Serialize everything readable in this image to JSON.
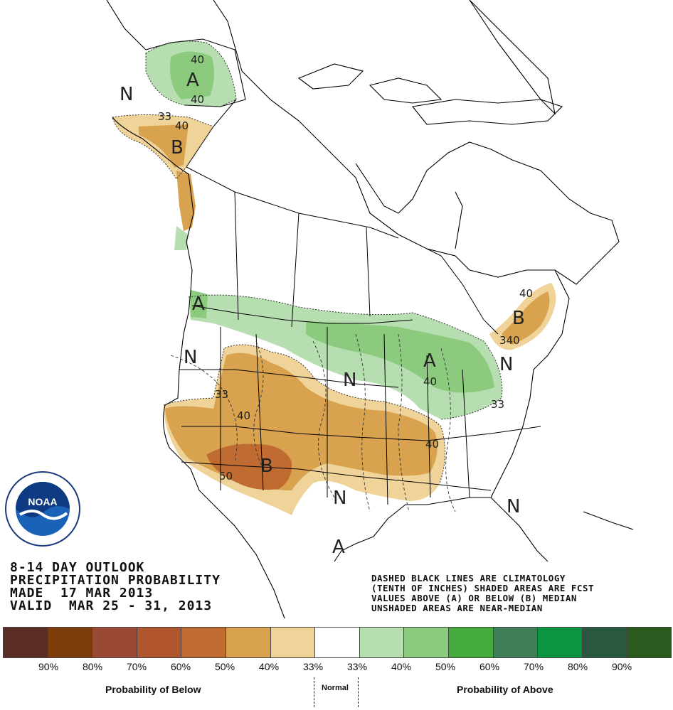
{
  "header": {
    "line1": "8-14 DAY OUTLOOK",
    "line2": "PRECIPITATION PROBABILITY",
    "line3": "MADE  17 MAR 2013",
    "line4": "VALID  MAR 25 - 31, 2013"
  },
  "notes": {
    "line1": "DASHED BLACK LINES ARE CLIMATOLOGY",
    "line2": "(TENTH OF INCHES) SHADED AREAS ARE FCST",
    "line3": "VALUES ABOVE (A) OR BELOW (B) MEDIAN",
    "line4": "UNSHADED AREAS ARE NEAR-MEDIAN"
  },
  "logo": {
    "text": "NOAA",
    "icon": "noaa-logo"
  },
  "map_labels": {
    "n_alaska": "N",
    "a_alaska": "A",
    "b_alaska": "B",
    "a_pnw": "A",
    "n_nv": "N",
    "n_plains": "N",
    "a_greatlakes": "A",
    "b_ne": "B",
    "n_east": "N",
    "b_sw": "B",
    "n_tx": "N",
    "a_gulf": "A",
    "n_se": "N"
  },
  "contours": {
    "c40a": "40",
    "c40b": "40",
    "c33a": "33",
    "c40c": "40",
    "c33b": "33",
    "c40d": "40",
    "c50": "50",
    "c40e": "40",
    "c33c": "33",
    "c40f": "40",
    "c40g": "40",
    "c340": "340"
  },
  "legend": {
    "colors": [
      "#5a2e26",
      "#7d3e0c",
      "#9a4a34",
      "#b0552e",
      "#c06b32",
      "#d8a24e",
      "#f0d398",
      "#ffffff",
      "#b6deb0",
      "#8ccb7e",
      "#44ab3c",
      "#3f7e56",
      "#0b9442",
      "#2a5740",
      "#2a5a1e"
    ],
    "percent_labels": [
      "90%",
      "80%",
      "70%",
      "60%",
      "50%",
      "40%",
      "33%",
      "33%",
      "40%",
      "50%",
      "60%",
      "70%",
      "80%",
      "90%"
    ],
    "below_caption": "Probability of Below",
    "normal_caption": "Normal",
    "above_caption": "Probability of Above"
  }
}
